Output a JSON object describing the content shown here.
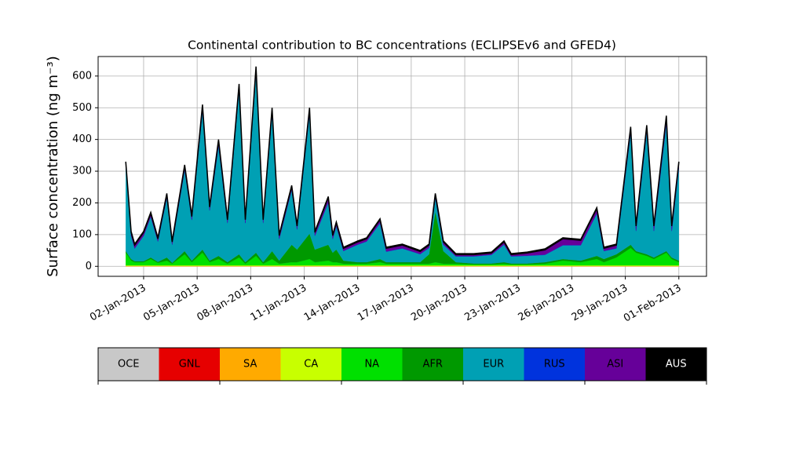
{
  "chart_data": {
    "type": "stacked-area",
    "title": "Continental contribution to BC concentrations (ECLIPSEv6 and GFED4)",
    "y_label": "Surface concentration (ng m⁻³)",
    "x": [
      1,
      1.3,
      1.5,
      2,
      2.4,
      2.8,
      3.3,
      3.6,
      4.3,
      4.7,
      5.3,
      5.7,
      6.2,
      6.7,
      7.35,
      7.7,
      8.3,
      8.7,
      9.2,
      9.6,
      10.3,
      10.6,
      11.3,
      11.6,
      12.35,
      12.6,
      12.8,
      13.2,
      14,
      14.5,
      15.25,
      15.6,
      16.5,
      17.5,
      18,
      18.35,
      18.8,
      19.5,
      20.5,
      21.5,
      22.2,
      22.6,
      23.5,
      24.5,
      25.5,
      26.5,
      27.4,
      27.8,
      28.5,
      29.3,
      29.6,
      30.2,
      30.6,
      31.3,
      31.6,
      32
    ],
    "xlim": [
      -0.55,
      33.55
    ],
    "xticks": [
      {
        "value": 2,
        "label": "02-Jan-2013"
      },
      {
        "value": 5,
        "label": "05-Jan-2013"
      },
      {
        "value": 8,
        "label": "08-Jan-2013"
      },
      {
        "value": 11,
        "label": "11-Jan-2013"
      },
      {
        "value": 14,
        "label": "14-Jan-2013"
      },
      {
        "value": 17,
        "label": "17-Jan-2013"
      },
      {
        "value": 20,
        "label": "20-Jan-2013"
      },
      {
        "value": 23,
        "label": "23-Jan-2013"
      },
      {
        "value": 26,
        "label": "26-Jan-2013"
      },
      {
        "value": 29,
        "label": "29-Jan-2013"
      },
      {
        "value": 32,
        "label": "01-Feb-2013"
      }
    ],
    "ylim": [
      -31.5,
      661.5
    ],
    "yticks": [
      0,
      100,
      200,
      300,
      400,
      500,
      600
    ],
    "grid": true,
    "series": [
      {
        "name": "OCE",
        "color": "#c8c8c8",
        "values": [
          0,
          0,
          0,
          0,
          0,
          0,
          0,
          0,
          0,
          0,
          0,
          0,
          0,
          0,
          0,
          0,
          0,
          0,
          0,
          0,
          0,
          0,
          0,
          0,
          0,
          0,
          0,
          0,
          0,
          0,
          0,
          0,
          0,
          0,
          0,
          0,
          0,
          0,
          0,
          0,
          0,
          0,
          0,
          0,
          0,
          0,
          0,
          0,
          0,
          0,
          0,
          0,
          0,
          0,
          0,
          0
        ]
      },
      {
        "name": "GNL",
        "color": "#e60000",
        "values": [
          0,
          0,
          0,
          0,
          0,
          0,
          0,
          0,
          0,
          0,
          0,
          0,
          0,
          0,
          0,
          0,
          0,
          0,
          0,
          0,
          0,
          0,
          0,
          0,
          0,
          0,
          0,
          0,
          0,
          0,
          0,
          0,
          0,
          0,
          0,
          0,
          0,
          0,
          0,
          0,
          0,
          0,
          0,
          0,
          0,
          0,
          0,
          0,
          0,
          0,
          0,
          0,
          0,
          0,
          0,
          0
        ]
      },
      {
        "name": "SA",
        "color": "#ffaa00",
        "values": [
          1,
          1,
          1,
          1,
          1,
          1,
          1,
          1,
          1,
          1,
          1,
          1,
          1,
          1,
          1,
          1,
          1,
          1,
          1,
          1,
          1,
          1,
          1,
          1,
          1,
          1,
          1,
          1,
          1,
          1,
          1,
          1,
          1,
          1,
          1,
          1,
          1,
          1,
          1,
          1,
          1,
          1,
          1,
          1,
          1,
          1,
          1,
          1,
          1,
          1,
          1,
          1,
          1,
          1,
          1,
          1
        ]
      },
      {
        "name": "CA",
        "color": "#c8ff00",
        "values": [
          2,
          2,
          2,
          2,
          2,
          2,
          2,
          2,
          2,
          2,
          2,
          2,
          2,
          2,
          2,
          2,
          2,
          2,
          2,
          2,
          2,
          2,
          2,
          2,
          2,
          2,
          2,
          2,
          2,
          2,
          2,
          2,
          2,
          2,
          2,
          2,
          2,
          2,
          2,
          2,
          2,
          2,
          2,
          2,
          2,
          2,
          2,
          2,
          2,
          2,
          2,
          2,
          2,
          2,
          2,
          2
        ]
      },
      {
        "name": "NA",
        "color": "#00e000",
        "values": [
          40,
          15,
          10,
          10,
          20,
          8,
          15,
          5,
          35,
          10,
          40,
          10,
          20,
          5,
          25,
          5,
          30,
          5,
          20,
          5,
          10,
          10,
          20,
          10,
          15,
          10,
          10,
          5,
          5,
          5,
          10,
          5,
          5,
          5,
          5,
          10,
          5,
          5,
          3,
          3,
          5,
          3,
          3,
          5,
          15,
          10,
          20,
          10,
          25,
          55,
          40,
          30,
          20,
          40,
          20,
          10
        ]
      },
      {
        "name": "AFR",
        "color": "#009900",
        "values": [
          5,
          5,
          3,
          3,
          5,
          3,
          10,
          3,
          10,
          5,
          10,
          5,
          10,
          5,
          10,
          5,
          10,
          5,
          25,
          10,
          55,
          40,
          80,
          40,
          50,
          30,
          40,
          10,
          5,
          5,
          10,
          5,
          5,
          5,
          30,
          160,
          40,
          5,
          3,
          3,
          5,
          3,
          3,
          5,
          5,
          5,
          10,
          10,
          10,
          10,
          5,
          5,
          5,
          5,
          5,
          5
        ]
      },
      {
        "name": "EUR",
        "color": "#00a0b4",
        "values": [
          268,
          73,
          40,
          80,
          128,
          64,
          188,
          57,
          256,
          128,
          438,
          158,
          348,
          123,
          518,
          123,
          568,
          123,
          433,
          68,
          173,
          63,
          378,
          43,
          133,
          43,
          73,
          30,
          55,
          65,
          113,
          33,
          43,
          25,
          20,
          43,
          20,
          18,
          22,
          27,
          55,
          22,
          24,
          23,
          43,
          48,
          133,
          25,
          18,
          353,
          63,
          388,
          83,
          403,
          83,
          293
        ]
      },
      {
        "name": "RUS",
        "color": "#0033dd",
        "values": [
          1,
          1,
          1,
          1,
          1,
          1,
          1,
          1,
          1,
          1,
          1,
          1,
          1,
          1,
          1,
          1,
          1,
          1,
          1,
          1,
          1,
          1,
          1,
          1,
          1,
          1,
          1,
          1,
          1,
          1,
          1,
          1,
          1,
          1,
          1,
          1,
          1,
          1,
          1,
          1,
          1,
          1,
          1,
          1,
          1,
          1,
          1,
          1,
          1,
          1,
          1,
          1,
          1,
          1,
          1,
          1
        ]
      },
      {
        "name": "ASI",
        "color": "#660099",
        "values": [
          10,
          10,
          10,
          10,
          10,
          8,
          10,
          8,
          12,
          10,
          15,
          10,
          15,
          10,
          15,
          10,
          15,
          10,
          15,
          10,
          10,
          10,
          15,
          10,
          15,
          10,
          10,
          8,
          8,
          8,
          10,
          10,
          10,
          8,
          8,
          10,
          8,
          5,
          5,
          5,
          8,
          5,
          8,
          15,
          20,
          15,
          15,
          8,
          10,
          15,
          15,
          15,
          15,
          20,
          15,
          15
        ]
      },
      {
        "name": "AUS",
        "color": "#000000",
        "values": [
          3,
          3,
          3,
          3,
          3,
          3,
          3,
          3,
          3,
          3,
          3,
          3,
          3,
          3,
          3,
          3,
          3,
          3,
          3,
          3,
          3,
          3,
          3,
          3,
          3,
          3,
          3,
          3,
          3,
          3,
          3,
          3,
          3,
          3,
          3,
          3,
          3,
          3,
          3,
          3,
          3,
          3,
          3,
          3,
          3,
          3,
          3,
          3,
          3,
          3,
          3,
          3,
          3,
          3,
          3,
          3
        ]
      }
    ]
  }
}
